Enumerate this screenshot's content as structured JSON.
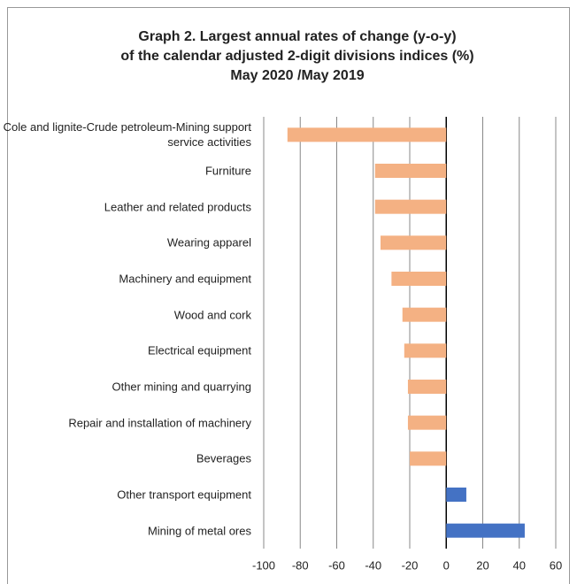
{
  "chart_data": {
    "type": "hbar",
    "title": [
      "Graph 2. Largest annual rates of change (y-o-y)",
      "of the calendar adjusted 2-digit divisions indices (%)",
      "May 2020 /May 2019"
    ],
    "categories": [
      "Cole and lignite-Crude petroleum-Mining support service activities",
      "Furniture",
      "Leather and related products",
      "Wearing apparel",
      "Machinery and equipment",
      "Wood and cork",
      "Electrical equipment",
      "Other mining and quarrying",
      "Repair and installation of machinery",
      "Beverages",
      "Other transport equipment",
      "Mining of metal ores"
    ],
    "values": [
      -87,
      -39,
      -39,
      -36,
      -30,
      -24,
      -23,
      -21,
      -21,
      -20,
      11,
      43
    ],
    "colors": [
      "#f4b183",
      "#f4b183",
      "#f4b183",
      "#f4b183",
      "#f4b183",
      "#f4b183",
      "#f4b183",
      "#f4b183",
      "#f4b183",
      "#f4b183",
      "#4472c4",
      "#4472c4"
    ],
    "xlim": [
      -100,
      60
    ],
    "xticks": [
      -100,
      -80,
      -60,
      -40,
      -20,
      0,
      20,
      40,
      60
    ],
    "grid": true
  }
}
